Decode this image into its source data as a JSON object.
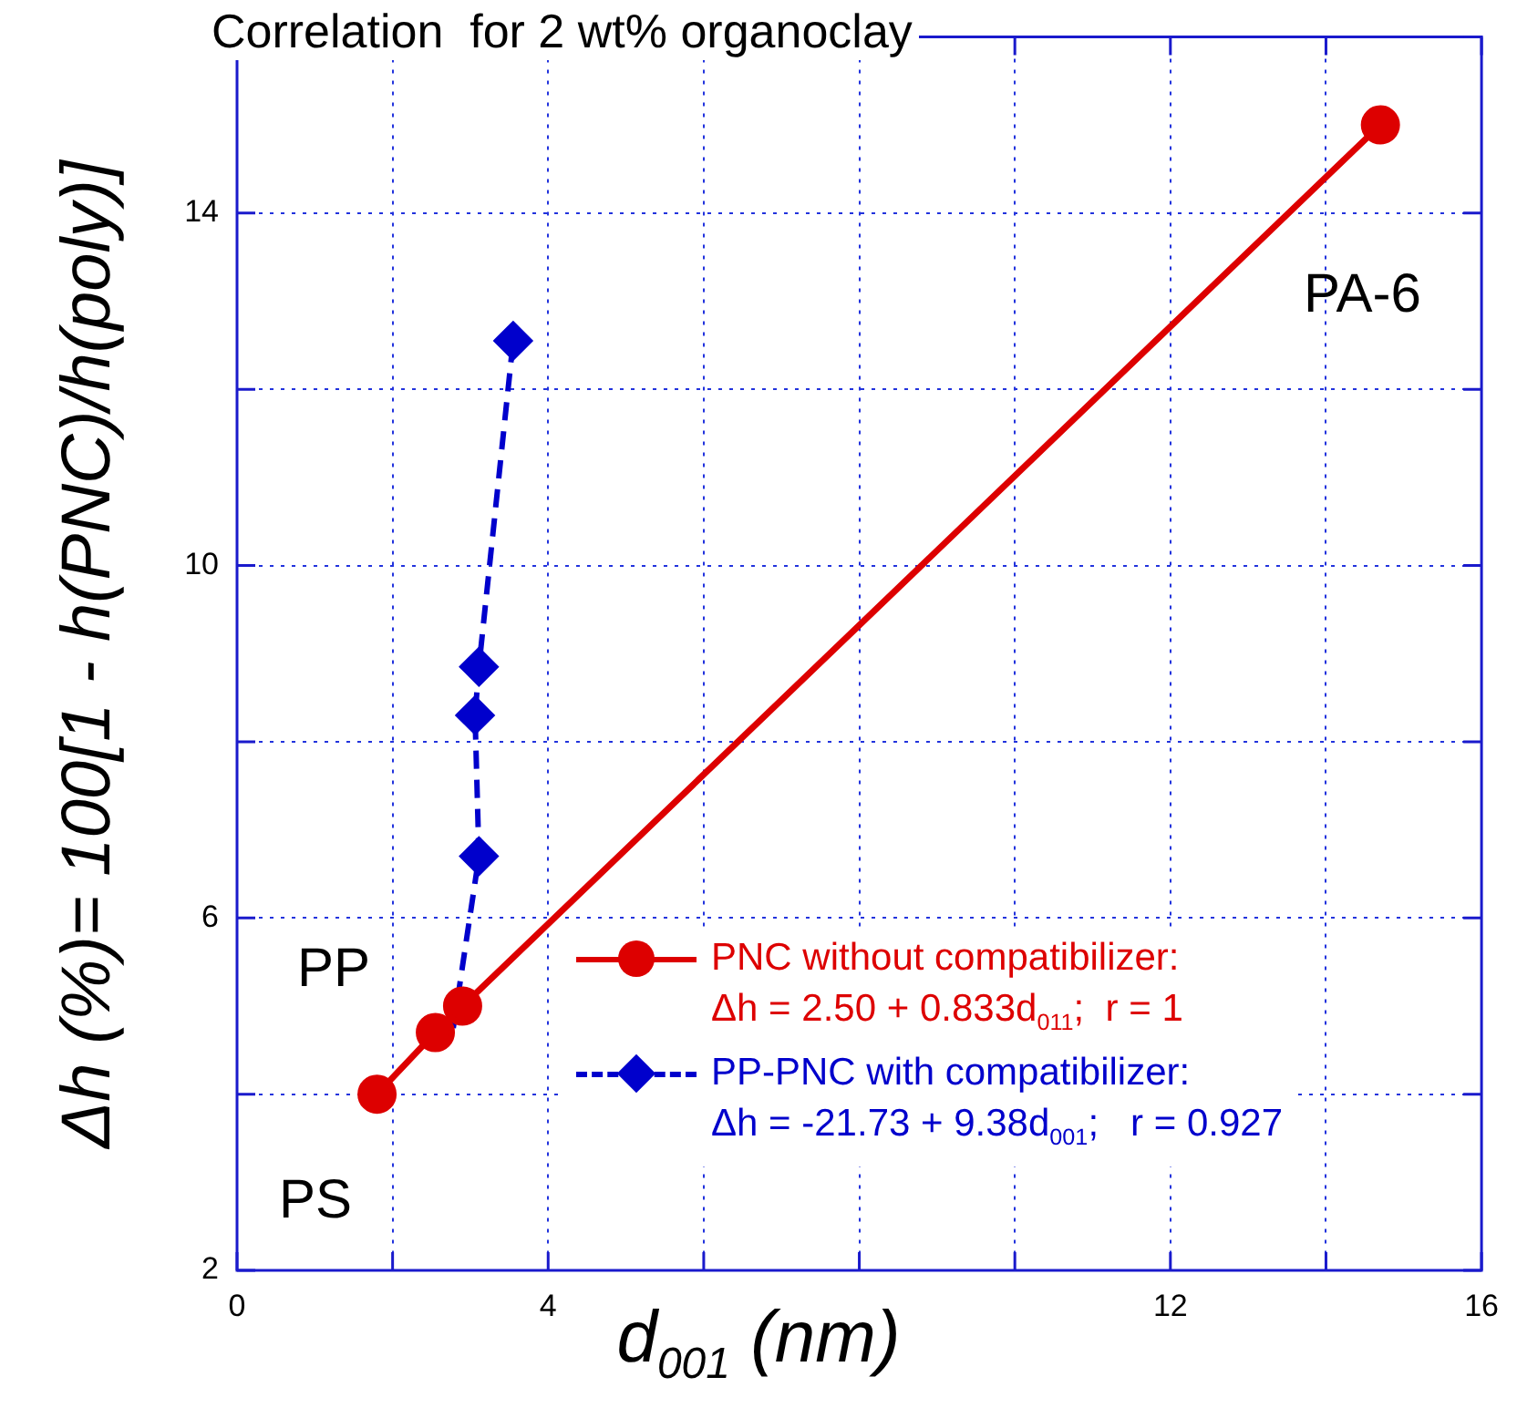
{
  "chart_data": {
    "type": "line",
    "title": "Correlation  for 2 wt% organoclay",
    "xlabel": "d$_{001}$ (nm)",
    "ylabel": "Δh (%)= 100[1 - h(PNC)/h(poly)]",
    "xlim": [
      0,
      16
    ],
    "xticks": [
      0,
      {
        "value": 2,
        "label": null
      },
      4,
      {
        "value": 6,
        "label": null
      },
      {
        "value": 8,
        "label": null
      },
      {
        "value": 10,
        "label": null
      },
      12,
      {
        "value": 14,
        "label": null
      },
      16
    ],
    "ylim": [
      2,
      16
    ],
    "yticks": [
      2,
      {
        "value": 4,
        "label": null
      },
      6,
      {
        "value": 8,
        "label": null
      },
      10,
      {
        "value": 12,
        "label": null
      },
      14,
      {
        "value": 16,
        "label": null
      }
    ],
    "grid": true,
    "legend": "bottom right",
    "series": [
      {
        "name": "PNC without compatibilizer:",
        "color": "#dd0000",
        "marker": "circle",
        "line_style": "solid",
        "x": [
          1.8,
          2.55,
          2.9,
          14.7
        ],
        "values": [
          4.0,
          4.7,
          5.0,
          15.0
        ]
      },
      {
        "name": "PP-PNC with compatibilizer:",
        "color": "#0000cc",
        "marker": "diamond",
        "line_style": "dashed",
        "x": [
          3.11,
          3.06,
          3.11,
          3.55
        ],
        "values": [
          6.7,
          8.3,
          8.85,
          12.55
        ]
      },
      {
        "color": "#0000cc",
        "marker": "none",
        "line_style": "dashed",
        "x": [
          2.78,
          3.11
        ],
        "values": [
          4.75,
          6.7
        ]
      }
    ],
    "annotations": [
      "Δh = 2.50 + 0.833d$_{011}$;  r = 1",
      "Δh = -21.73 + 9.38d$_{001}$;   r = 0.927",
      "PA-6",
      "PP",
      "PS"
    ]
  }
}
